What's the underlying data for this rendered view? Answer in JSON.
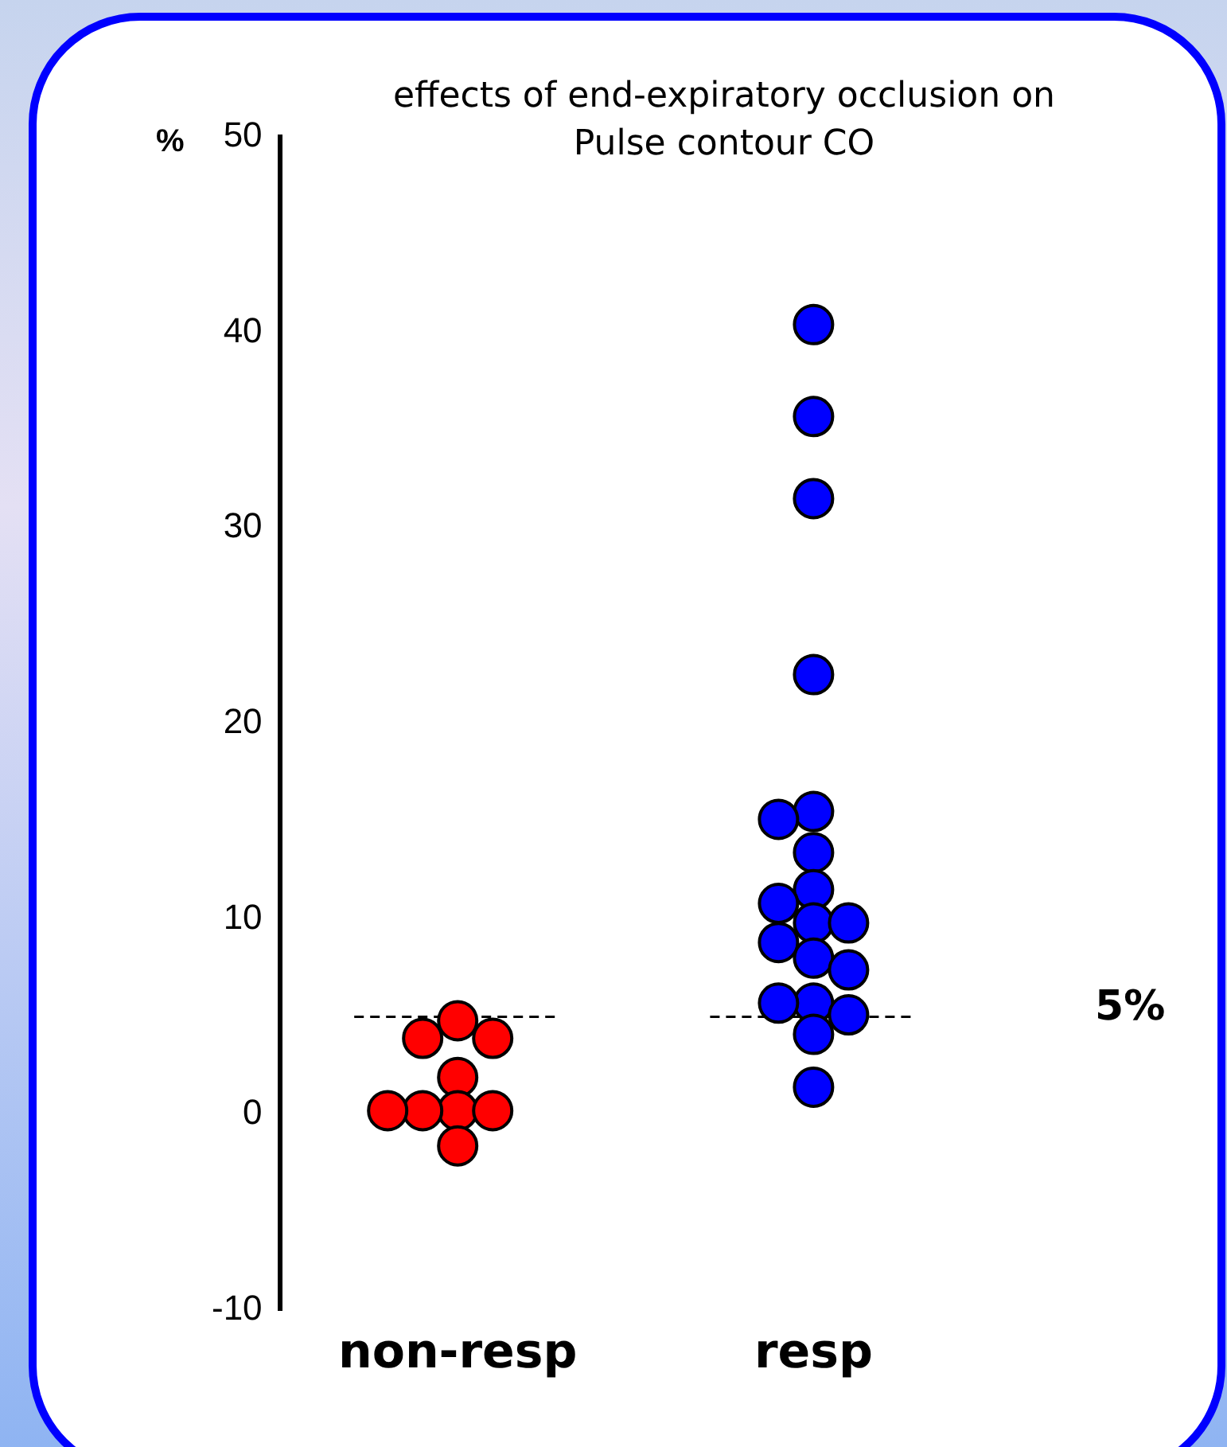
{
  "chart_data": {
    "type": "scatter",
    "title": "effects of end-expiratory occlusion on Pulse contour CO",
    "ylabel": "%",
    "categories": [
      "non-resp",
      "resp"
    ],
    "series": [
      {
        "color": "#ff0000",
        "x": [
          "non-resp",
          "non-resp",
          "non-resp",
          "non-resp",
          "non-resp",
          "non-resp",
          "non-resp",
          "non-resp",
          "non-resp"
        ],
        "values": [
          4.8,
          3.9,
          3.9,
          1.9,
          0.2,
          0.2,
          0.2,
          0.2,
          -1.6
        ]
      },
      {
        "color": "#0000ff",
        "x": [
          "resp",
          "resp",
          "resp",
          "resp",
          "resp",
          "resp",
          "resp",
          "resp",
          "resp",
          "resp",
          "resp",
          "resp",
          "resp",
          "resp",
          "resp",
          "resp",
          "resp",
          "resp",
          "resp"
        ],
        "values": [
          40.4,
          35.7,
          31.5,
          22.5,
          15.5,
          15.1,
          13.4,
          11.5,
          10.8,
          9.8,
          9.8,
          8.8,
          8.0,
          7.4,
          5.7,
          5.7,
          5.1,
          4.1,
          1.4
        ]
      }
    ],
    "ylim": [
      -10,
      50
    ],
    "yticks": [
      -10,
      0,
      10,
      20,
      30,
      40,
      50
    ],
    "ref_lines": [
      {
        "axis": "y",
        "value": 5,
        "label": "5%",
        "line_style": "dashed"
      }
    ],
    "marker": "circle",
    "grid": false,
    "legend": false
  }
}
